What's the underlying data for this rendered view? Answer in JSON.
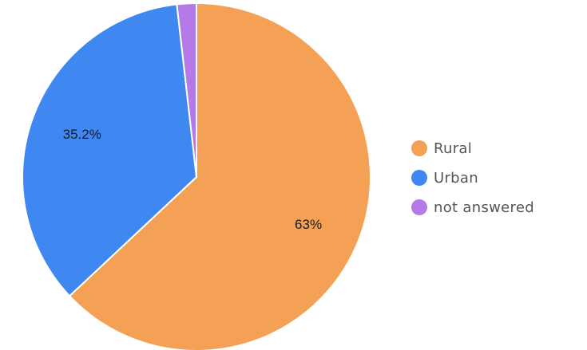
{
  "chart_data": {
    "type": "pie",
    "slices": [
      {
        "name": "Rural",
        "value": 63,
        "label": "63%",
        "color": "#f4a156"
      },
      {
        "name": "Urban",
        "value": 35.2,
        "label": "35.2%",
        "color": "#3f88f2"
      },
      {
        "name": "not answered",
        "value": 1.8,
        "label": "",
        "color": "#b57ae8"
      }
    ],
    "legend": {
      "position": "right",
      "entries": [
        "Rural",
        "Urban",
        "not answered"
      ]
    },
    "start_angle": "12 o'clock",
    "direction": "clockwise"
  }
}
